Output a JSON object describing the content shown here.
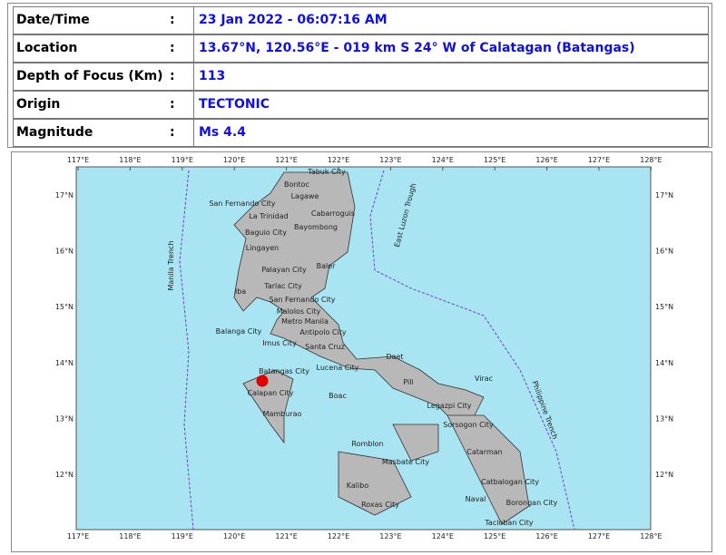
{
  "table": {
    "rows": [
      {
        "label": "Date/Time",
        "colon": ":",
        "value": "23 Jan 2022 - 06:07:16 AM"
      },
      {
        "label": "Location",
        "colon": ":",
        "value": "13.67°N, 120.56°E - 019 km S 24° W of Calatagan (Batangas)"
      },
      {
        "label": "Depth of Focus (Km)",
        "colon": ":",
        "value": "113"
      },
      {
        "label": "Origin",
        "colon": ":",
        "value": "TECTONIC"
      },
      {
        "label": "Magnitude",
        "colon": ":",
        "value": "Ms 4.4"
      }
    ]
  },
  "map": {
    "lon_labels": [
      "117°E",
      "118°E",
      "119°E",
      "120°E",
      "121°E",
      "122°E",
      "123°E",
      "124°E",
      "125°E",
      "126°E",
      "127°E",
      "128°E"
    ],
    "lat_labels": [
      "17°N",
      "16°N",
      "15°N",
      "14°N",
      "13°N",
      "12°N"
    ],
    "places": [
      "Tabuk City",
      "Bontoc",
      "Lagawe",
      "San Fernando City",
      "La Trinidad",
      "Cabarroguis",
      "Baguio City",
      "Bayombong",
      "Lingayen",
      "Palayan City",
      "Baler",
      "Tarlac City",
      "Iba",
      "San Fernando City",
      "Malolos City",
      "Metro Manila",
      "Balanga City",
      "Antipolo City",
      "Imus City",
      "Santa Cruz",
      "Batangas City",
      "Lucena City",
      "Daet",
      "Calapan City",
      "Boac",
      "Virac",
      "Pili",
      "Legazpi City",
      "Mamburao",
      "Sorsogon City",
      "Romblon",
      "Masbate City",
      "Catarman",
      "Catbalogan City",
      "Kalibo",
      "Roxas City",
      "Naval",
      "Borongan City",
      "Tacloban City"
    ],
    "trenches": [
      "Manila Trench",
      "East Luzon Trough",
      "Philippine Trench"
    ]
  }
}
